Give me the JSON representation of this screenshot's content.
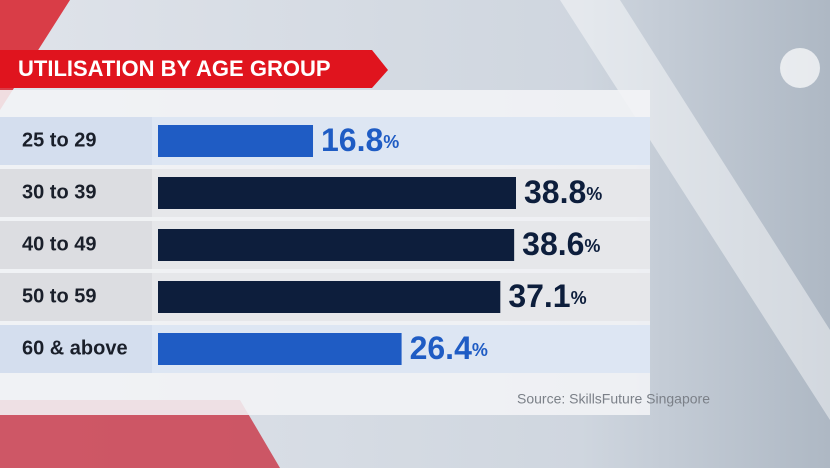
{
  "chart_data": {
    "type": "bar",
    "orientation": "horizontal",
    "title": "UTILISATION BY AGE GROUP",
    "categories": [
      "25 to 29",
      "30 to 39",
      "40 to 49",
      "50 to 59",
      "60 & above"
    ],
    "values": [
      16.8,
      38.8,
      38.6,
      37.1,
      26.4
    ],
    "value_labels": [
      "16.8%",
      "38.8%",
      "38.6%",
      "37.1%",
      "26.4%"
    ],
    "colors": [
      "#1f5cc4",
      "#0d1e3c",
      "#0d1e3c",
      "#0d1e3c",
      "#1f5cc4"
    ],
    "source": "Source: SkillsFuture Singapore"
  }
}
